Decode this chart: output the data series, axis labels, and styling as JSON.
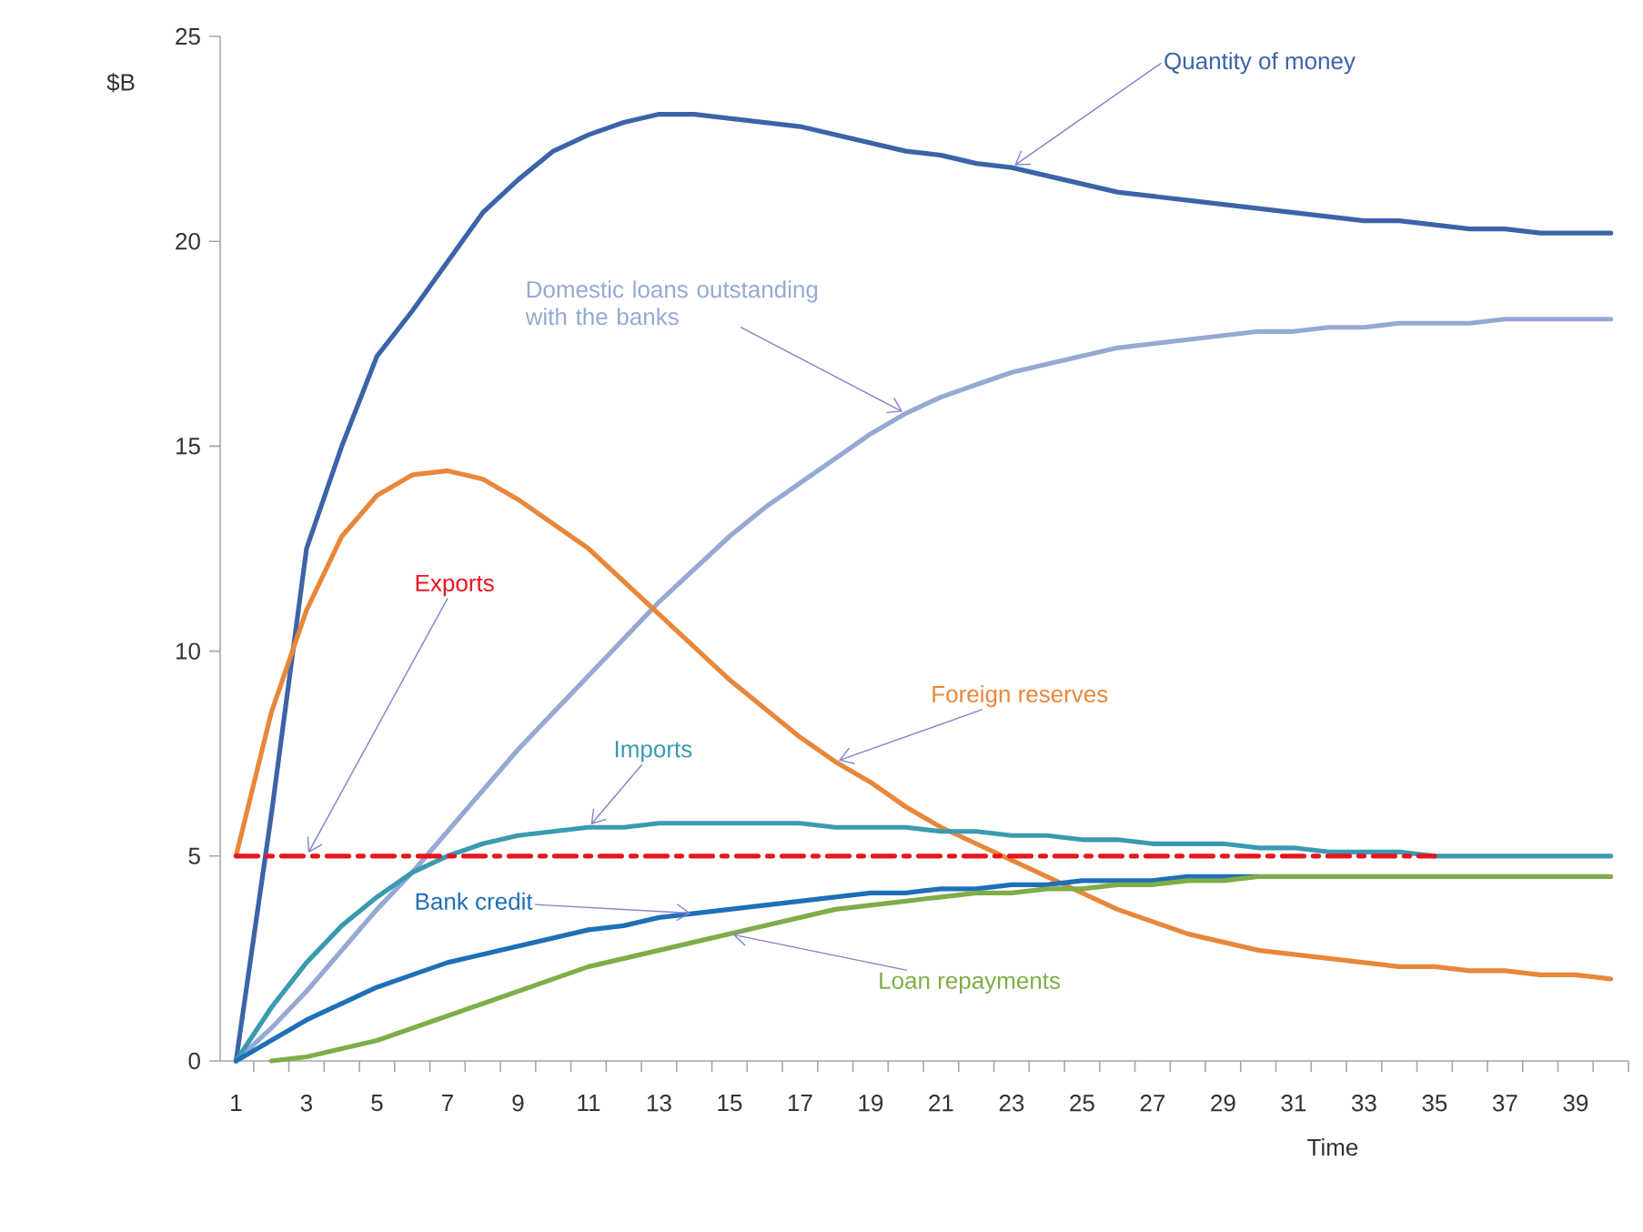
{
  "chart_data": {
    "type": "line",
    "xlabel": "Time",
    "ylabel": "$B",
    "categories": [
      "1",
      null,
      "3",
      null,
      "5",
      null,
      "7",
      null,
      "9",
      null,
      "11",
      null,
      "13",
      null,
      "15",
      null,
      "17",
      null,
      "19",
      null,
      "21",
      null,
      "23",
      null,
      "25",
      null,
      "27",
      null,
      "29",
      null,
      "31",
      null,
      "33",
      null,
      "35",
      null,
      "37",
      null,
      "39",
      null
    ],
    "ylim": [
      0,
      25
    ],
    "yticks": [
      0,
      5,
      10,
      15,
      20,
      25
    ],
    "grid": false,
    "legend": false,
    "marker": "none",
    "series": [
      {
        "name": "Quantity of money",
        "color": "#3b64a8",
        "values": [
          0,
          6,
          12.5,
          15,
          17.2,
          18.3,
          19.5,
          20.7,
          21.5,
          22.2,
          22.6,
          22.9,
          23.1,
          23.1,
          23,
          22.9,
          22.8,
          22.6,
          22.4,
          22.2,
          22.1,
          21.9,
          21.8,
          21.6,
          21.4,
          21.2,
          21.1,
          21,
          20.9,
          20.8,
          20.7,
          20.6,
          20.5,
          20.5,
          20.4,
          20.3,
          20.3,
          20.2,
          20.2,
          20.2
        ]
      },
      {
        "name": "Domestic  loans outstanding with the banks",
        "color": "#95a9d3",
        "values": [
          0,
          0.8,
          1.7,
          2.7,
          3.7,
          4.6,
          5.6,
          6.6,
          7.6,
          8.5,
          9.4,
          10.3,
          11.2,
          12,
          12.8,
          13.5,
          14.1,
          14.7,
          15.3,
          15.8,
          16.2,
          16.5,
          16.8,
          17,
          17.2,
          17.4,
          17.5,
          17.6,
          17.7,
          17.8,
          17.8,
          17.9,
          17.9,
          18,
          18,
          18,
          18.1,
          18.1,
          18.1,
          18.1
        ]
      },
      {
        "name": "Foreign reserves",
        "color": "#e8873a",
        "values": [
          5,
          8.5,
          11,
          12.8,
          13.8,
          14.3,
          14.4,
          14.2,
          13.7,
          13.1,
          12.5,
          11.7,
          10.9,
          10.1,
          9.3,
          8.6,
          7.9,
          7.3,
          6.8,
          6.2,
          5.7,
          5.3,
          4.9,
          4.5,
          4.1,
          3.7,
          3.4,
          3.1,
          2.9,
          2.7,
          2.6,
          2.5,
          2.4,
          2.3,
          2.3,
          2.2,
          2.2,
          2.1,
          2.1,
          2
        ]
      },
      {
        "name": "Imports",
        "color": "#3a9ab0",
        "values": [
          0,
          1.3,
          2.4,
          3.3,
          4,
          4.6,
          5,
          5.3,
          5.5,
          5.6,
          5.7,
          5.7,
          5.8,
          5.8,
          5.8,
          5.8,
          5.8,
          5.7,
          5.7,
          5.7,
          5.6,
          5.6,
          5.5,
          5.5,
          5.4,
          5.4,
          5.3,
          5.3,
          5.3,
          5.2,
          5.2,
          5.1,
          5.1,
          5.1,
          5,
          5,
          5,
          5,
          5,
          5
        ]
      },
      {
        "name": "Bank credit",
        "color": "#1f6fb8",
        "values": [
          0,
          0.5,
          1,
          1.4,
          1.8,
          2.1,
          2.4,
          2.6,
          2.8,
          3,
          3.2,
          3.3,
          3.5,
          3.6,
          3.7,
          3.8,
          3.9,
          4,
          4.1,
          4.1,
          4.2,
          4.2,
          4.3,
          4.3,
          4.4,
          4.4,
          4.4,
          4.5,
          4.5,
          4.5,
          null,
          null,
          null,
          null,
          null,
          null,
          null,
          null,
          null,
          null
        ]
      },
      {
        "name": "Loan repayments",
        "color": "#7fad48",
        "values": [
          null,
          0,
          0.1,
          0.3,
          0.5,
          0.8,
          1.1,
          1.4,
          1.7,
          2,
          2.3,
          2.5,
          2.7,
          2.9,
          3.1,
          3.3,
          3.5,
          3.7,
          3.8,
          3.9,
          4,
          4.1,
          4.1,
          4.2,
          4.2,
          4.3,
          4.3,
          4.4,
          4.4,
          4.5,
          4.5,
          4.5,
          4.5,
          4.5,
          4.5,
          4.5,
          4.5,
          4.5,
          4.5,
          4.5
        ]
      },
      {
        "name": "Exports",
        "color": "#e8141c",
        "line_style": "dashed",
        "values": [
          5,
          5,
          5,
          5,
          5,
          5,
          5,
          5,
          5,
          5,
          5,
          5,
          5,
          5,
          5,
          5,
          5,
          5,
          5,
          5,
          5,
          5,
          5,
          5,
          5,
          5,
          5,
          5,
          5,
          5,
          5,
          5,
          5,
          5,
          5,
          null,
          null,
          null,
          null,
          null
        ]
      }
    ]
  }
}
